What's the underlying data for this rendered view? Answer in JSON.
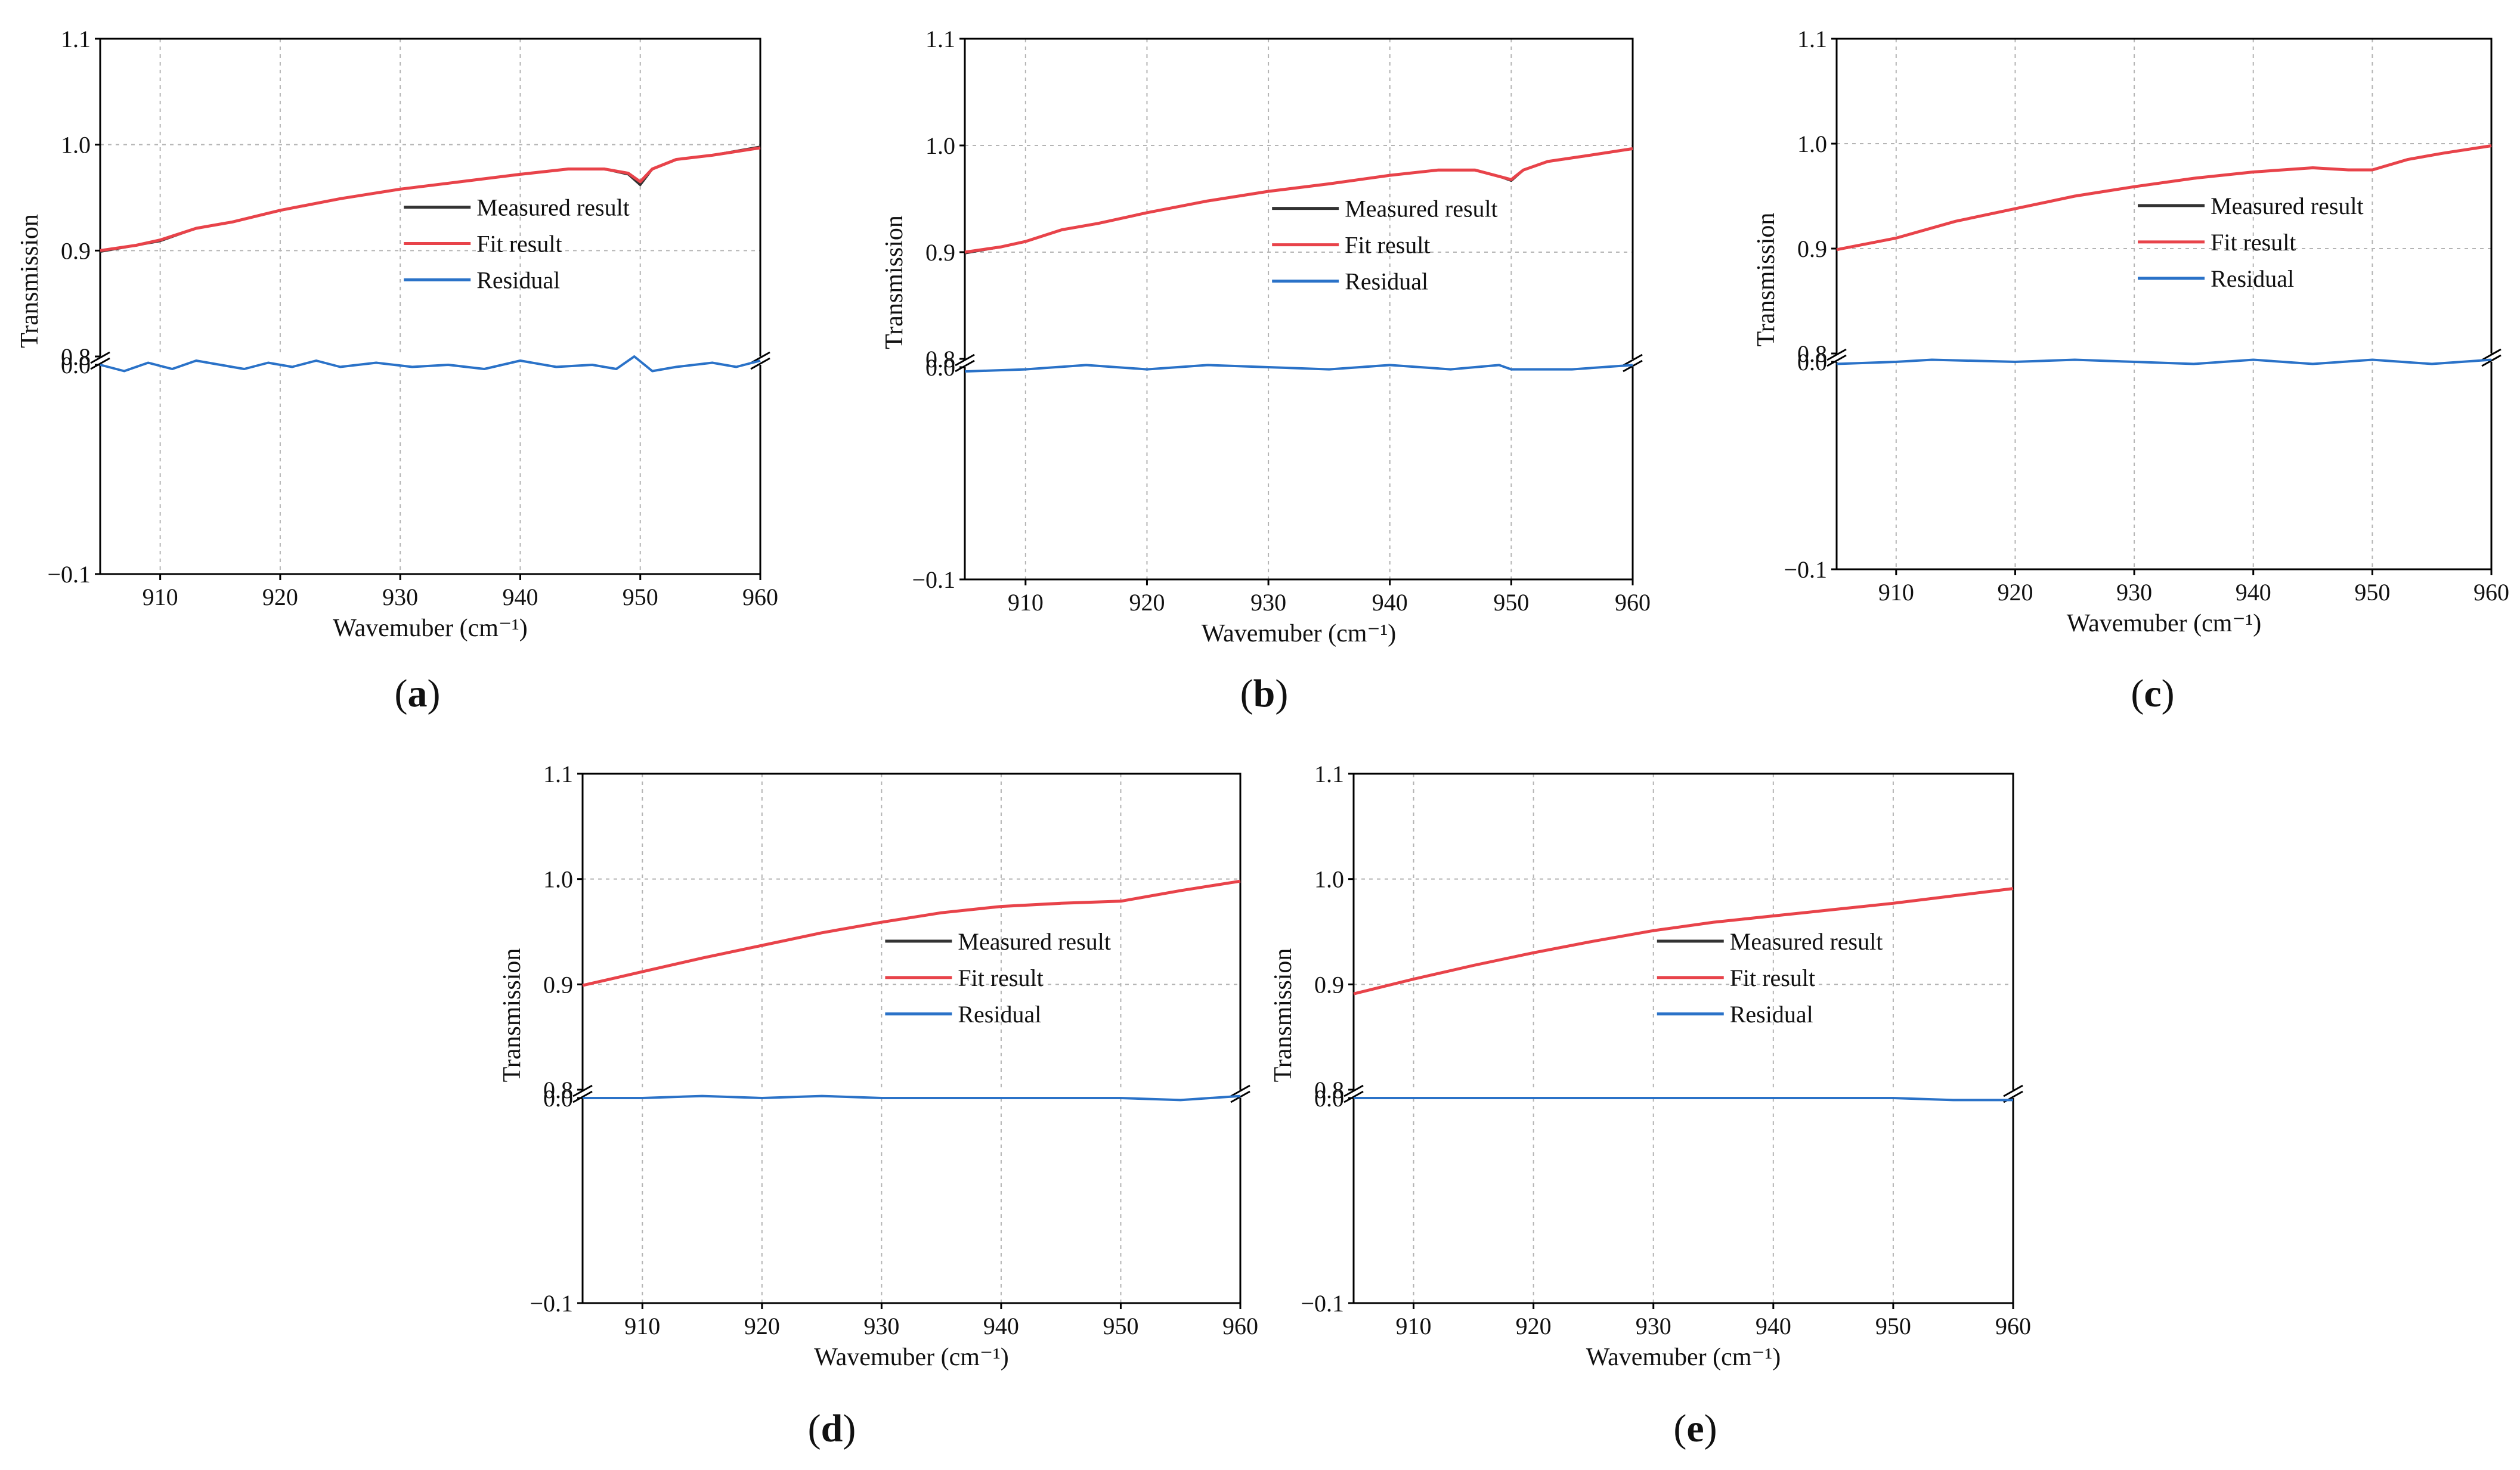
{
  "chart_data": [
    {
      "panel_label": "a",
      "type": "line",
      "title": "",
      "xlabel": "Wavemuber (cm⁻¹)",
      "ylabel": "Transmission",
      "xlim": [
        905,
        960
      ],
      "xticks": [
        910,
        920,
        930,
        940,
        950,
        960
      ],
      "ylim_upper": [
        0.8,
        1.1
      ],
      "yticks_upper": [
        "0.8",
        "0.9",
        "1.0",
        "1.1"
      ],
      "ylim_lower": [
        -0.1,
        0.0
      ],
      "yticks_lower": [
        "−0.1",
        "0.0"
      ],
      "grid": true,
      "axis_break": true,
      "legend_position": "center-right",
      "series": [
        {
          "name": "Measured result",
          "color": "#333333",
          "x": [
            905,
            908,
            910,
            913,
            916,
            920,
            925,
            930,
            935,
            940,
            944,
            947,
            949,
            950,
            951,
            953,
            956,
            960
          ],
          "y": [
            0.899,
            0.905,
            0.909,
            0.921,
            0.927,
            0.938,
            0.949,
            0.958,
            0.965,
            0.972,
            0.977,
            0.977,
            0.972,
            0.962,
            0.977,
            0.986,
            0.99,
            0.998
          ]
        },
        {
          "name": "Fit result",
          "color": "#e8434a",
          "x": [
            905,
            908,
            910,
            913,
            916,
            920,
            925,
            930,
            935,
            940,
            944,
            947,
            949,
            950,
            951,
            953,
            956,
            960
          ],
          "y": [
            0.9,
            0.905,
            0.91,
            0.921,
            0.927,
            0.938,
            0.949,
            0.958,
            0.965,
            0.972,
            0.977,
            0.977,
            0.973,
            0.965,
            0.977,
            0.986,
            0.99,
            0.997
          ]
        },
        {
          "name": "Residual",
          "color": "#2a72c8",
          "x": [
            905,
            907,
            909,
            911,
            913,
            915,
            917,
            919,
            921,
            923,
            925,
            928,
            931,
            934,
            937,
            940,
            943,
            946,
            948,
            949.5,
            951,
            953,
            956,
            958,
            960
          ],
          "y": [
            0.0,
            -0.003,
            0.001,
            -0.002,
            0.002,
            0.0,
            -0.002,
            0.001,
            -0.001,
            0.002,
            -0.001,
            0.001,
            -0.001,
            0.0,
            -0.002,
            0.002,
            -0.001,
            0.0,
            -0.002,
            0.004,
            -0.003,
            -0.001,
            0.001,
            -0.001,
            0.002
          ]
        }
      ]
    },
    {
      "panel_label": "b",
      "type": "line",
      "title": "",
      "xlabel": "Wavemuber (cm⁻¹)",
      "ylabel": "Transmission",
      "xlim": [
        905,
        960
      ],
      "xticks": [
        910,
        920,
        930,
        940,
        950,
        960
      ],
      "ylim_upper": [
        0.8,
        1.1
      ],
      "yticks_upper": [
        "0.8",
        "0.9",
        "1.0",
        "1.1"
      ],
      "ylim_lower": [
        -0.1,
        0.0
      ],
      "yticks_lower": [
        "−0.1",
        "0.0"
      ],
      "grid": true,
      "axis_break": true,
      "legend_position": "center-right",
      "series": [
        {
          "name": "Measured result",
          "color": "#333333",
          "x": [
            905,
            908,
            910,
            913,
            916,
            920,
            925,
            930,
            935,
            940,
            944,
            947,
            949,
            950,
            951,
            953,
            956,
            960
          ],
          "y": [
            0.899,
            0.905,
            0.91,
            0.921,
            0.927,
            0.937,
            0.948,
            0.957,
            0.964,
            0.972,
            0.977,
            0.977,
            0.971,
            0.967,
            0.977,
            0.985,
            0.99,
            0.997
          ]
        },
        {
          "name": "Fit result",
          "color": "#e8434a",
          "x": [
            905,
            908,
            910,
            913,
            916,
            920,
            925,
            930,
            935,
            940,
            944,
            947,
            949,
            950,
            951,
            953,
            956,
            960
          ],
          "y": [
            0.9,
            0.905,
            0.91,
            0.921,
            0.927,
            0.937,
            0.948,
            0.957,
            0.964,
            0.972,
            0.977,
            0.977,
            0.971,
            0.968,
            0.977,
            0.985,
            0.99,
            0.997
          ]
        },
        {
          "name": "Residual",
          "color": "#2a72c8",
          "x": [
            905,
            910,
            915,
            920,
            925,
            930,
            935,
            940,
            945,
            949,
            950,
            952,
            955,
            960
          ],
          "y": [
            -0.002,
            -0.001,
            0.001,
            -0.001,
            0.001,
            0.0,
            -0.001,
            0.001,
            -0.001,
            0.001,
            -0.001,
            -0.001,
            -0.001,
            0.001
          ]
        }
      ]
    },
    {
      "panel_label": "c",
      "type": "line",
      "title": "",
      "xlabel": "Wavemuber (cm⁻¹)",
      "ylabel": "Transmission",
      "xlim": [
        905,
        960
      ],
      "xticks": [
        910,
        920,
        930,
        940,
        950,
        960
      ],
      "ylim_upper": [
        0.8,
        1.1
      ],
      "yticks_upper": [
        "0.8",
        "0.9",
        "1.0",
        "1.1"
      ],
      "ylim_lower": [
        -0.1,
        0.0
      ],
      "yticks_lower": [
        "−0.1",
        "0.0"
      ],
      "grid": true,
      "axis_break": true,
      "legend_position": "center-right",
      "series": [
        {
          "name": "Measured result",
          "color": "#333333",
          "x": [
            905,
            910,
            915,
            920,
            925,
            930,
            935,
            940,
            945,
            948,
            950,
            953,
            956,
            960
          ],
          "y": [
            0.899,
            0.91,
            0.926,
            0.938,
            0.95,
            0.959,
            0.967,
            0.973,
            0.977,
            0.975,
            0.975,
            0.985,
            0.991,
            0.998
          ]
        },
        {
          "name": "Fit result",
          "color": "#e8434a",
          "x": [
            905,
            910,
            915,
            920,
            925,
            930,
            935,
            940,
            945,
            948,
            950,
            953,
            956,
            960
          ],
          "y": [
            0.899,
            0.91,
            0.926,
            0.938,
            0.95,
            0.959,
            0.967,
            0.973,
            0.977,
            0.975,
            0.975,
            0.985,
            0.991,
            0.998
          ]
        },
        {
          "name": "Residual",
          "color": "#2a72c8",
          "x": [
            905,
            910,
            913,
            920,
            925,
            930,
            935,
            940,
            945,
            950,
            955,
            960
          ],
          "y": [
            -0.001,
            0.0,
            0.001,
            0.0,
            0.001,
            0.0,
            -0.001,
            0.001,
            -0.001,
            0.001,
            -0.001,
            0.001
          ]
        }
      ]
    },
    {
      "panel_label": "d",
      "type": "line",
      "title": "",
      "xlabel": "Wavemuber (cm⁻¹)",
      "ylabel": "Transmission",
      "xlim": [
        905,
        960
      ],
      "xticks": [
        910,
        920,
        930,
        940,
        950,
        960
      ],
      "ylim_upper": [
        0.8,
        1.1
      ],
      "yticks_upper": [
        "0.8",
        "0.9",
        "1.0",
        "1.1"
      ],
      "ylim_lower": [
        -0.1,
        0.0
      ],
      "yticks_lower": [
        "−0.1",
        "0.0"
      ],
      "grid": true,
      "axis_break": true,
      "legend_position": "center-right",
      "series": [
        {
          "name": "Measured result",
          "color": "#333333",
          "x": [
            905,
            910,
            915,
            920,
            925,
            930,
            935,
            940,
            945,
            950,
            955,
            960
          ],
          "y": [
            0.899,
            0.912,
            0.925,
            0.937,
            0.949,
            0.959,
            0.968,
            0.974,
            0.977,
            0.979,
            0.989,
            0.998
          ]
        },
        {
          "name": "Fit result",
          "color": "#e8434a",
          "x": [
            905,
            910,
            915,
            920,
            925,
            930,
            935,
            940,
            945,
            950,
            955,
            960
          ],
          "y": [
            0.899,
            0.912,
            0.925,
            0.937,
            0.949,
            0.959,
            0.968,
            0.974,
            0.977,
            0.979,
            0.989,
            0.998
          ]
        },
        {
          "name": "Residual",
          "color": "#2a72c8",
          "x": [
            905,
            910,
            915,
            920,
            925,
            930,
            935,
            940,
            945,
            950,
            955,
            960
          ],
          "y": [
            0.0,
            0.0,
            0.001,
            0.0,
            0.001,
            0.0,
            0.0,
            0.0,
            0.0,
            0.0,
            -0.001,
            0.001
          ]
        }
      ]
    },
    {
      "panel_label": "e",
      "type": "line",
      "title": "",
      "xlabel": "Wavemuber (cm⁻¹)",
      "ylabel": "Transmission",
      "xlim": [
        905,
        960
      ],
      "xticks": [
        910,
        920,
        930,
        940,
        950,
        960
      ],
      "ylim_upper": [
        0.8,
        1.1
      ],
      "yticks_upper": [
        "0.8",
        "0.9",
        "1.0",
        "1.1"
      ],
      "ylim_lower": [
        -0.1,
        0.0
      ],
      "yticks_lower": [
        "−0.1",
        "0.0"
      ],
      "grid": true,
      "axis_break": true,
      "legend_position": "center-right",
      "series": [
        {
          "name": "Measured result",
          "color": "#333333",
          "x": [
            905,
            910,
            915,
            920,
            925,
            930,
            935,
            940,
            945,
            950,
            955,
            960
          ],
          "y": [
            0.891,
            0.905,
            0.918,
            0.93,
            0.941,
            0.951,
            0.959,
            0.965,
            0.971,
            0.977,
            0.984,
            0.991
          ]
        },
        {
          "name": "Fit result",
          "color": "#e8434a",
          "x": [
            905,
            910,
            915,
            920,
            925,
            930,
            935,
            940,
            945,
            950,
            955,
            960
          ],
          "y": [
            0.891,
            0.905,
            0.918,
            0.93,
            0.941,
            0.951,
            0.959,
            0.965,
            0.971,
            0.977,
            0.984,
            0.991
          ]
        },
        {
          "name": "Residual",
          "color": "#2a72c8",
          "x": [
            905,
            910,
            915,
            920,
            925,
            930,
            935,
            940,
            945,
            950,
            955,
            960
          ],
          "y": [
            0.0,
            0.0,
            0.0,
            0.0,
            0.0,
            0.0,
            0.0,
            0.0,
            0.0,
            0.0,
            -0.001,
            -0.001
          ]
        }
      ]
    }
  ]
}
